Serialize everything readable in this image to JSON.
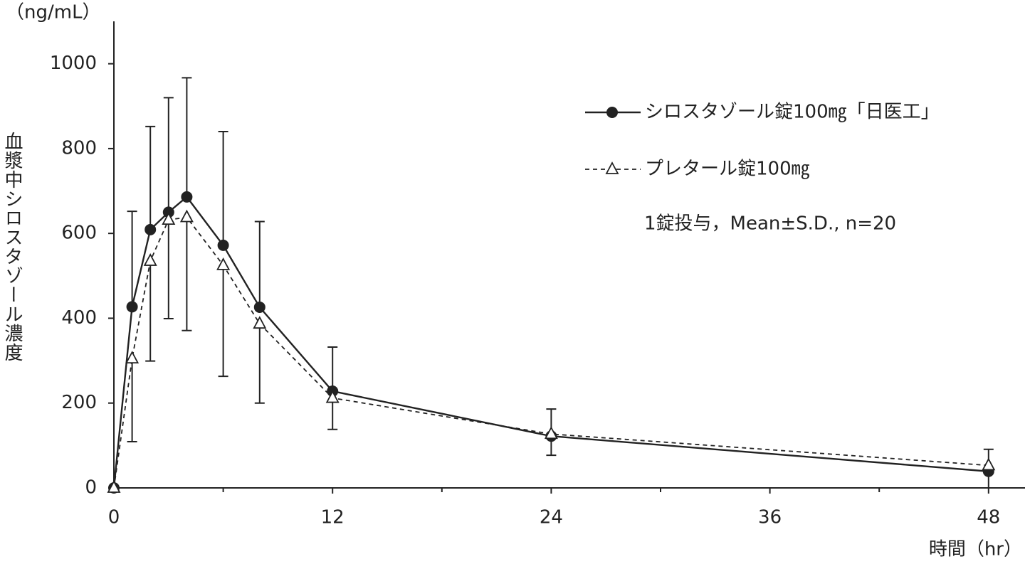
{
  "chart_data": {
    "type": "line",
    "y_unit_label": "（ng/mL）",
    "ylabel": "血漿中シロスタゾール濃度",
    "xlabel": "時間（hr）",
    "annotation": "1錠投与，Mean±S.D., n=20",
    "x": [
      0,
      1,
      2,
      3,
      4,
      6,
      8,
      12,
      24,
      48
    ],
    "series": [
      {
        "name": "シロスタゾール錠100㎎「日医工」",
        "color": "#222222",
        "marker": "circle",
        "line_style": "solid",
        "values": [
          0,
          427,
          609,
          650,
          686,
          572,
          426,
          228,
          122,
          39
        ],
        "error_plus": [
          null,
          225,
          243,
          270,
          281,
          268,
          202,
          104,
          64,
          52
        ]
      },
      {
        "name": "プレタール錠100㎎",
        "color": "#222222",
        "marker": "triangle",
        "line_style": "dashed",
        "values": [
          0,
          305,
          535,
          632,
          638,
          525,
          387,
          212,
          127,
          53
        ],
        "error_minus": [
          null,
          196,
          236,
          233,
          267,
          262,
          187,
          74,
          50,
          53
        ]
      }
    ],
    "xlim": [
      0,
      50
    ],
    "xticks": [
      0,
      12,
      24,
      36,
      48
    ],
    "xminorticks": [
      6,
      18,
      30,
      42
    ],
    "ylim": [
      0,
      1100
    ],
    "yticks": [
      0,
      200,
      400,
      600,
      800,
      1000
    ]
  }
}
